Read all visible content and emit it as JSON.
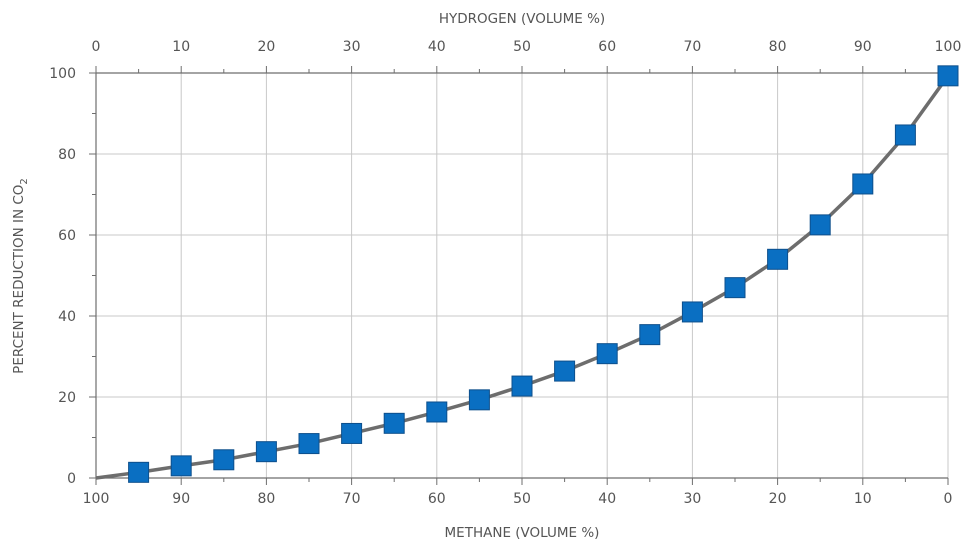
{
  "chart_data": {
    "type": "line",
    "x_bottom_label": "METHANE (VOLUME %)",
    "x_top_label": "HYDROGEN (VOLUME %)",
    "ylabel_text": "PERCENT REDUCTION IN CO",
    "ylabel_subscript": "2",
    "x_bottom_ticks": [
      "100",
      "90",
      "80",
      "70",
      "60",
      "50",
      "40",
      "30",
      "20",
      "10",
      "0"
    ],
    "x_top_ticks": [
      "0",
      "10",
      "20",
      "30",
      "40",
      "50",
      "60",
      "70",
      "80",
      "90",
      "100"
    ],
    "y_ticks": [
      "0",
      "20",
      "40",
      "60",
      "80",
      "100"
    ],
    "xlim": [
      0,
      100
    ],
    "ylim": [
      0,
      100
    ],
    "x_axis_variable": "hydrogen volume %",
    "grid": true,
    "marker": "square",
    "series": [
      {
        "color": "#0a6fc2",
        "line_color": "#6d6d6d",
        "x": [
          0,
          5,
          10,
          15,
          20,
          25,
          30,
          35,
          40,
          45,
          50,
          55,
          60,
          65,
          70,
          75,
          80,
          85,
          90,
          95,
          100
        ],
        "values": [
          0,
          1.4,
          3.0,
          4.5,
          6.5,
          8.5,
          11.0,
          13.5,
          16.3,
          19.3,
          22.7,
          26.4,
          30.7,
          35.4,
          41.0,
          47.0,
          54.0,
          62.5,
          72.6,
          84.7,
          99.3
        ]
      }
    ]
  }
}
